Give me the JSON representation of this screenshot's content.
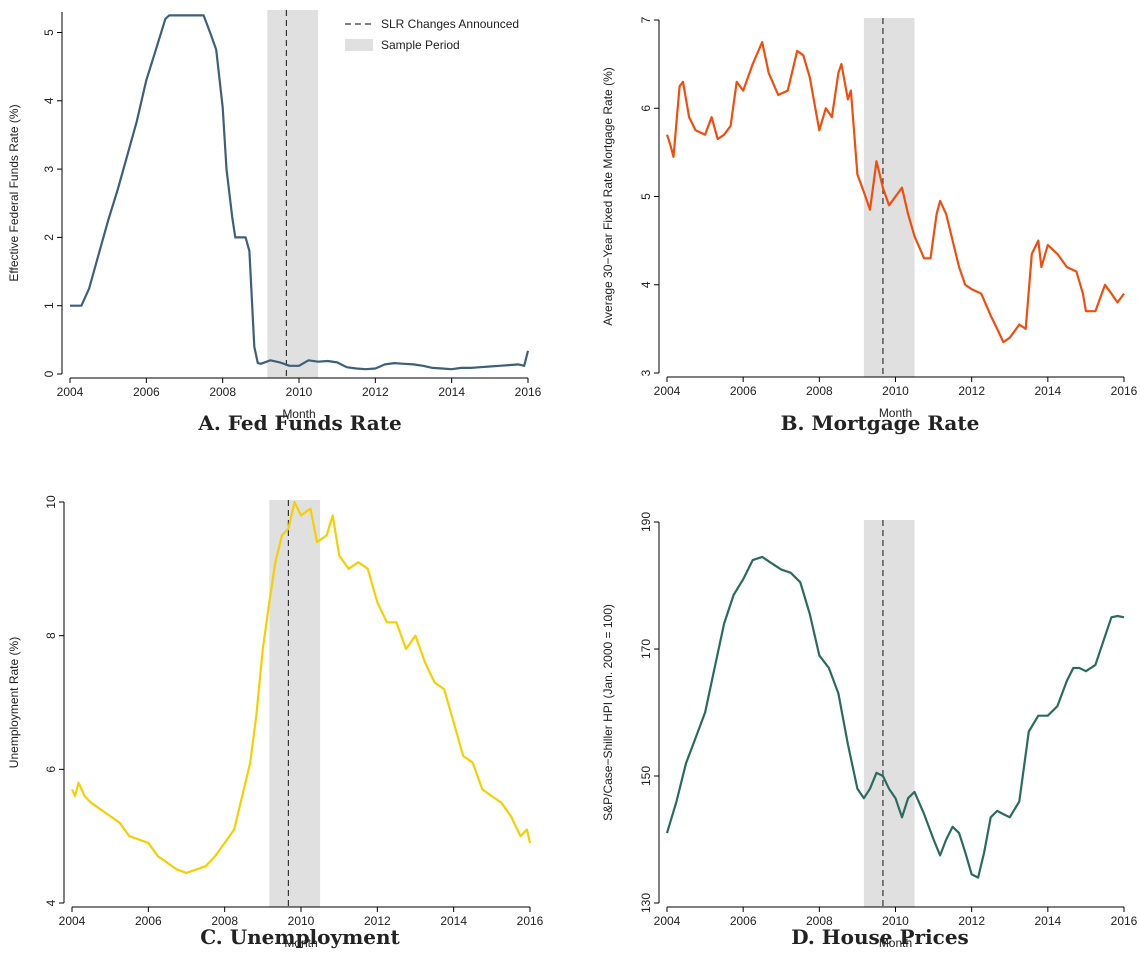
{
  "chart_data": [
    {
      "type": "line",
      "title": "A. Fed Funds Rate",
      "x_label": "Month",
      "y_label": "Effective Federal Funds Rate (%)",
      "color": "#3e5f7a",
      "xlim": [
        2004,
        2016
      ],
      "xticks": [
        2004,
        2006,
        2008,
        2010,
        2012,
        2014,
        2016
      ],
      "ylim": [
        0,
        5.3
      ],
      "yticks": [
        0,
        1,
        2,
        3,
        4,
        5
      ],
      "shade": [
        2009.17,
        2010.5
      ],
      "vline": 2009.67,
      "legend": {
        "vline": "SLR Changes Announced",
        "shade": "Sample Period"
      },
      "x": [
        2004.0,
        2004.3,
        2004.5,
        2004.75,
        2005.0,
        2005.25,
        2005.5,
        2005.75,
        2006.0,
        2006.25,
        2006.5,
        2006.6,
        2007.0,
        2007.5,
        2007.67,
        2007.83,
        2008.0,
        2008.1,
        2008.25,
        2008.33,
        2008.6,
        2008.7,
        2008.83,
        2008.92,
        2009.0,
        2009.25,
        2009.5,
        2009.75,
        2010.0,
        2010.25,
        2010.5,
        2010.75,
        2011.0,
        2011.25,
        2011.5,
        2011.75,
        2012.0,
        2012.25,
        2012.5,
        2012.75,
        2013.0,
        2013.25,
        2013.5,
        2013.75,
        2014.0,
        2014.25,
        2014.5,
        2014.75,
        2015.0,
        2015.25,
        2015.5,
        2015.75,
        2015.9,
        2016.0
      ],
      "values": [
        1.0,
        1.0,
        1.25,
        1.75,
        2.25,
        2.7,
        3.2,
        3.7,
        4.3,
        4.75,
        5.2,
        5.25,
        5.25,
        5.25,
        5.0,
        4.75,
        3.9,
        3.0,
        2.3,
        2.0,
        2.0,
        1.8,
        0.4,
        0.16,
        0.15,
        0.2,
        0.17,
        0.12,
        0.12,
        0.2,
        0.18,
        0.19,
        0.17,
        0.1,
        0.08,
        0.07,
        0.08,
        0.14,
        0.16,
        0.15,
        0.14,
        0.12,
        0.09,
        0.08,
        0.07,
        0.09,
        0.09,
        0.1,
        0.11,
        0.12,
        0.13,
        0.14,
        0.12,
        0.34
      ]
    },
    {
      "type": "line",
      "title": "B. Mortgage Rate",
      "x_label": "Month",
      "y_label": "Average 30−Year Fixed Rate Mortgage Rate (%)",
      "color": "#f04e0e",
      "xlim": [
        2004,
        2016
      ],
      "xticks": [
        2004,
        2006,
        2008,
        2010,
        2012,
        2014,
        2016
      ],
      "ylim": [
        3,
        7
      ],
      "yticks": [
        3,
        4,
        5,
        6,
        7
      ],
      "shade": [
        2009.17,
        2010.5
      ],
      "vline": 2009.67,
      "x": [
        2004.0,
        2004.08,
        2004.17,
        2004.33,
        2004.42,
        2004.58,
        2004.75,
        2005.0,
        2005.17,
        2005.33,
        2005.5,
        2005.67,
        2005.83,
        2006.0,
        2006.25,
        2006.5,
        2006.67,
        2006.92,
        2007.17,
        2007.42,
        2007.58,
        2007.75,
        2008.0,
        2008.17,
        2008.33,
        2008.5,
        2008.58,
        2008.75,
        2008.83,
        2009.0,
        2009.17,
        2009.33,
        2009.5,
        2009.67,
        2009.83,
        2010.0,
        2010.17,
        2010.33,
        2010.5,
        2010.75,
        2010.92,
        2011.08,
        2011.17,
        2011.33,
        2011.5,
        2011.67,
        2011.83,
        2012.0,
        2012.25,
        2012.5,
        2012.67,
        2012.83,
        2013.0,
        2013.25,
        2013.42,
        2013.58,
        2013.75,
        2013.83,
        2014.0,
        2014.25,
        2014.5,
        2014.75,
        2014.92,
        2015.0,
        2015.25,
        2015.5,
        2015.67,
        2015.83,
        2016.0
      ],
      "values": [
        5.7,
        5.6,
        5.45,
        6.25,
        6.3,
        5.9,
        5.75,
        5.7,
        5.9,
        5.65,
        5.7,
        5.8,
        6.3,
        6.2,
        6.5,
        6.75,
        6.4,
        6.15,
        6.2,
        6.65,
        6.6,
        6.35,
        5.75,
        6.0,
        5.9,
        6.4,
        6.5,
        6.1,
        6.2,
        5.25,
        5.05,
        4.85,
        5.4,
        5.1,
        4.9,
        5.0,
        5.1,
        4.8,
        4.55,
        4.3,
        4.3,
        4.8,
        4.95,
        4.8,
        4.5,
        4.2,
        4.0,
        3.95,
        3.9,
        3.65,
        3.5,
        3.35,
        3.4,
        3.55,
        3.5,
        4.35,
        4.5,
        4.2,
        4.45,
        4.35,
        4.2,
        4.15,
        3.9,
        3.7,
        3.7,
        4.0,
        3.9,
        3.8,
        3.9
      ]
    },
    {
      "type": "line",
      "title": "C. Unemployment",
      "x_label": "Month",
      "y_label": "Unemployment Rate (%)",
      "color": "#f5d000",
      "xlim": [
        2004,
        2016
      ],
      "xticks": [
        2004,
        2006,
        2008,
        2010,
        2012,
        2014,
        2016
      ],
      "ylim": [
        4,
        10
      ],
      "yticks": [
        4,
        6,
        8,
        10
      ],
      "shade": [
        2009.17,
        2010.5
      ],
      "vline": 2009.67,
      "x": [
        2004.0,
        2004.08,
        2004.17,
        2004.33,
        2004.5,
        2004.75,
        2005.0,
        2005.25,
        2005.5,
        2005.75,
        2006.0,
        2006.25,
        2006.5,
        2006.75,
        2007.0,
        2007.25,
        2007.5,
        2007.75,
        2008.0,
        2008.25,
        2008.5,
        2008.67,
        2008.83,
        2009.0,
        2009.17,
        2009.33,
        2009.5,
        2009.67,
        2009.83,
        2010.0,
        2010.25,
        2010.42,
        2010.67,
        2010.83,
        2011.0,
        2011.25,
        2011.5,
        2011.75,
        2012.0,
        2012.25,
        2012.5,
        2012.75,
        2013.0,
        2013.25,
        2013.5,
        2013.75,
        2014.0,
        2014.25,
        2014.5,
        2014.75,
        2015.0,
        2015.25,
        2015.5,
        2015.75,
        2015.92,
        2016.0
      ],
      "values": [
        5.7,
        5.6,
        5.8,
        5.6,
        5.5,
        5.4,
        5.3,
        5.2,
        5.0,
        4.95,
        4.9,
        4.7,
        4.6,
        4.5,
        4.45,
        4.5,
        4.55,
        4.7,
        4.9,
        5.1,
        5.7,
        6.1,
        6.8,
        7.8,
        8.5,
        9.1,
        9.5,
        9.6,
        10.0,
        9.8,
        9.9,
        9.4,
        9.5,
        9.8,
        9.2,
        9.0,
        9.1,
        9.0,
        8.5,
        8.2,
        8.2,
        7.8,
        8.0,
        7.6,
        7.3,
        7.2,
        6.7,
        6.2,
        6.1,
        5.7,
        5.6,
        5.5,
        5.3,
        5.0,
        5.1,
        4.9
      ]
    },
    {
      "type": "line",
      "title": "D. House Prices",
      "x_label": "Month",
      "y_label": "S&P/Case−Shiller HPI (Jan. 2000 = 100)",
      "color": "#2b6b5e",
      "xlim": [
        2004,
        2016
      ],
      "xticks": [
        2004,
        2006,
        2008,
        2010,
        2012,
        2014,
        2016
      ],
      "ylim": [
        130,
        190
      ],
      "yticks": [
        130,
        150,
        170,
        190
      ],
      "shade": [
        2009.17,
        2010.5
      ],
      "vline": 2009.67,
      "x": [
        2004.0,
        2004.25,
        2004.5,
        2004.75,
        2005.0,
        2005.25,
        2005.5,
        2005.75,
        2006.0,
        2006.25,
        2006.5,
        2006.75,
        2007.0,
        2007.25,
        2007.5,
        2007.75,
        2008.0,
        2008.25,
        2008.5,
        2008.75,
        2009.0,
        2009.17,
        2009.33,
        2009.5,
        2009.67,
        2009.83,
        2010.0,
        2010.17,
        2010.33,
        2010.5,
        2010.75,
        2011.0,
        2011.17,
        2011.33,
        2011.5,
        2011.67,
        2011.83,
        2012.0,
        2012.17,
        2012.33,
        2012.5,
        2012.67,
        2012.83,
        2013.0,
        2013.25,
        2013.5,
        2013.75,
        2014.0,
        2014.25,
        2014.5,
        2014.67,
        2014.83,
        2015.0,
        2015.25,
        2015.5,
        2015.67,
        2015.83,
        2016.0
      ],
      "values": [
        141,
        146,
        152,
        156,
        160,
        167,
        174,
        178.5,
        181,
        184,
        184.5,
        183.5,
        182.5,
        182,
        180.5,
        175.5,
        169,
        167,
        163,
        155,
        148,
        146.5,
        148,
        150.5,
        150,
        148,
        146.5,
        143.5,
        146.5,
        147.5,
        144,
        140,
        137.5,
        140,
        142,
        141,
        138,
        134.5,
        134,
        138,
        143.5,
        144.5,
        144,
        143.5,
        146,
        157,
        159.5,
        159.5,
        161,
        165,
        167,
        167,
        166.5,
        167.5,
        172,
        175,
        175.2,
        175
      ]
    }
  ]
}
